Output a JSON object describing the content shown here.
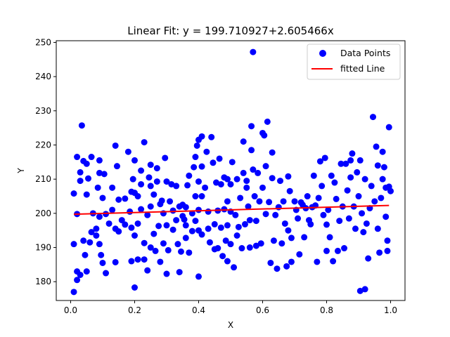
{
  "chart_data": {
    "type": "scatter",
    "title": "Linear Fit: y =  199.710927+2.605466x",
    "xlabel": "X",
    "ylabel": "Y",
    "xlim": [
      -0.045,
      1.045
    ],
    "ylim": [
      174.5,
      250.5
    ],
    "xticks": [
      0.0,
      0.2,
      0.4,
      0.6,
      0.8,
      1.0
    ],
    "xtick_labels": [
      "0.0",
      "0.2",
      "0.4",
      "0.6",
      "0.8",
      "1.0"
    ],
    "yticks": [
      180,
      190,
      200,
      210,
      220,
      230,
      240,
      250
    ],
    "ytick_labels": [
      "180",
      "190",
      "200",
      "210",
      "220",
      "230",
      "240",
      "250"
    ],
    "grid": false,
    "legend_position": "top-right",
    "series": [
      {
        "name": "Data Points",
        "kind": "scatter",
        "color": "#0000ff",
        "points": [
          [
            0.01,
            191
          ],
          [
            0.01,
            177
          ],
          [
            0.01,
            205.8
          ],
          [
            0.02,
            216.5
          ],
          [
            0.02,
            199.8
          ],
          [
            0.02,
            183
          ],
          [
            0.02,
            180.5
          ],
          [
            0.03,
            212
          ],
          [
            0.03,
            209.5
          ],
          [
            0.03,
            182
          ],
          [
            0.035,
            225.7
          ],
          [
            0.04,
            215.3
          ],
          [
            0.04,
            192
          ],
          [
            0.045,
            187.8
          ],
          [
            0.05,
            214.5
          ],
          [
            0.05,
            205.5
          ],
          [
            0.05,
            183
          ],
          [
            0.055,
            210.2
          ],
          [
            0.06,
            191.5
          ],
          [
            0.065,
            216.5
          ],
          [
            0.065,
            194.5
          ],
          [
            0.07,
            200
          ],
          [
            0.08,
            195.5
          ],
          [
            0.08,
            193.5
          ],
          [
            0.085,
            207.5
          ],
          [
            0.09,
            211.8
          ],
          [
            0.09,
            215.5
          ],
          [
            0.09,
            199
          ],
          [
            0.09,
            191
          ],
          [
            0.095,
            187.8
          ],
          [
            0.1,
            204.5
          ],
          [
            0.1,
            185.5
          ],
          [
            0.105,
            211.5
          ],
          [
            0.11,
            182.5
          ],
          [
            0.11,
            199.8
          ],
          [
            0.12,
            197
          ],
          [
            0.13,
            207.5
          ],
          [
            0.13,
            201
          ],
          [
            0.14,
            185.7
          ],
          [
            0.14,
            195.5
          ],
          [
            0.14,
            219.8
          ],
          [
            0.145,
            213.8
          ],
          [
            0.15,
            204
          ],
          [
            0.15,
            194.7
          ],
          [
            0.16,
            198
          ],
          [
            0.17,
            204.3
          ],
          [
            0.17,
            196.7
          ],
          [
            0.18,
            218
          ],
          [
            0.185,
            200.5
          ],
          [
            0.19,
            206.3
          ],
          [
            0.19,
            195.8
          ],
          [
            0.19,
            186
          ],
          [
            0.195,
            210
          ],
          [
            0.2,
            178.3
          ],
          [
            0.2,
            215.5
          ],
          [
            0.2,
            206
          ],
          [
            0.2,
            193.5
          ],
          [
            0.21,
            205
          ],
          [
            0.21,
            197
          ],
          [
            0.21,
            186.5
          ],
          [
            0.22,
            212.5
          ],
          [
            0.22,
            208.5
          ],
          [
            0.22,
            201.2
          ],
          [
            0.23,
            220.8
          ],
          [
            0.23,
            191.3
          ],
          [
            0.23,
            186.5
          ],
          [
            0.24,
            199.5
          ],
          [
            0.24,
            183.3
          ],
          [
            0.245,
            210.5
          ],
          [
            0.25,
            214.2
          ],
          [
            0.25,
            208
          ],
          [
            0.25,
            202
          ],
          [
            0.25,
            190
          ],
          [
            0.26,
            194
          ],
          [
            0.26,
            205.5
          ],
          [
            0.265,
            189
          ],
          [
            0.27,
            213.2
          ],
          [
            0.27,
            209.3
          ],
          [
            0.275,
            196.3
          ],
          [
            0.28,
            185.8
          ],
          [
            0.28,
            202.7
          ],
          [
            0.285,
            203.7
          ],
          [
            0.29,
            200
          ],
          [
            0.29,
            191.2
          ],
          [
            0.295,
            216.2
          ],
          [
            0.3,
            209.3
          ],
          [
            0.3,
            196.5
          ],
          [
            0.3,
            182.3
          ],
          [
            0.305,
            189.2
          ],
          [
            0.31,
            203.5
          ],
          [
            0.315,
            208.5
          ],
          [
            0.32,
            200.8
          ],
          [
            0.32,
            195.2
          ],
          [
            0.33,
            208
          ],
          [
            0.33,
            198
          ],
          [
            0.335,
            191
          ],
          [
            0.34,
            202
          ],
          [
            0.34,
            182.8
          ],
          [
            0.345,
            188.8
          ],
          [
            0.35,
            202.5
          ],
          [
            0.35,
            199.2
          ],
          [
            0.355,
            198.2
          ],
          [
            0.36,
            201.8
          ],
          [
            0.36,
            196.5
          ],
          [
            0.36,
            192.8
          ],
          [
            0.365,
            208.2
          ],
          [
            0.37,
            188.5
          ],
          [
            0.37,
            211
          ],
          [
            0.38,
            194.8
          ],
          [
            0.38,
            200
          ],
          [
            0.385,
            213.5
          ],
          [
            0.39,
            216.5
          ],
          [
            0.39,
            205
          ],
          [
            0.39,
            197.8
          ],
          [
            0.395,
            219.8
          ],
          [
            0.4,
            221.5
          ],
          [
            0.4,
            209.3
          ],
          [
            0.4,
            201
          ],
          [
            0.4,
            195
          ],
          [
            0.4,
            181.5
          ],
          [
            0.41,
            222.5
          ],
          [
            0.41,
            213.7
          ],
          [
            0.41,
            205
          ],
          [
            0.41,
            193.8
          ],
          [
            0.42,
            207.5
          ],
          [
            0.425,
            218
          ],
          [
            0.43,
            195.5
          ],
          [
            0.43,
            200.5
          ],
          [
            0.435,
            191.5
          ],
          [
            0.44,
            222.3
          ],
          [
            0.445,
            214.8
          ],
          [
            0.45,
            189.5
          ],
          [
            0.45,
            196.8
          ],
          [
            0.455,
            209
          ],
          [
            0.46,
            200.8
          ],
          [
            0.46,
            189.8
          ],
          [
            0.465,
            216
          ],
          [
            0.47,
            208.5
          ],
          [
            0.47,
            195.8
          ],
          [
            0.475,
            187.5
          ],
          [
            0.48,
            210.5
          ],
          [
            0.48,
            201.2
          ],
          [
            0.485,
            192
          ],
          [
            0.49,
            210
          ],
          [
            0.49,
            203.5
          ],
          [
            0.49,
            196.5
          ],
          [
            0.49,
            186
          ],
          [
            0.5,
            208.5
          ],
          [
            0.5,
            200.5
          ],
          [
            0.5,
            191
          ],
          [
            0.505,
            215
          ],
          [
            0.51,
            184.2
          ],
          [
            0.515,
            199.5
          ],
          [
            0.52,
            210
          ],
          [
            0.52,
            193.5
          ],
          [
            0.525,
            196
          ],
          [
            0.53,
            204.5
          ],
          [
            0.535,
            189.8
          ],
          [
            0.54,
            221
          ],
          [
            0.54,
            211.8
          ],
          [
            0.545,
            196.8
          ],
          [
            0.55,
            209.5
          ],
          [
            0.55,
            207.5
          ],
          [
            0.555,
            202
          ],
          [
            0.56,
            190
          ],
          [
            0.56,
            198
          ],
          [
            0.565,
            225.5
          ],
          [
            0.565,
            218.5
          ],
          [
            0.57,
            247.2
          ],
          [
            0.57,
            212.8
          ],
          [
            0.575,
            205
          ],
          [
            0.58,
            197.8
          ],
          [
            0.58,
            190.5
          ],
          [
            0.585,
            211.8
          ],
          [
            0.59,
            203.5
          ],
          [
            0.595,
            191.2
          ],
          [
            0.6,
            223.5
          ],
          [
            0.6,
            207.5
          ],
          [
            0.605,
            222.8
          ],
          [
            0.61,
            213.8
          ],
          [
            0.61,
            199.8
          ],
          [
            0.615,
            226.8
          ],
          [
            0.62,
            203.3
          ],
          [
            0.625,
            185.5
          ],
          [
            0.63,
            217.8
          ],
          [
            0.63,
            210.3
          ],
          [
            0.635,
            192
          ],
          [
            0.64,
            199.5
          ],
          [
            0.645,
            183.8
          ],
          [
            0.65,
            201.8
          ],
          [
            0.655,
            209.5
          ],
          [
            0.66,
            191.2
          ],
          [
            0.665,
            203.5
          ],
          [
            0.67,
            197
          ],
          [
            0.675,
            184.5
          ],
          [
            0.68,
            210.8
          ],
          [
            0.68,
            195
          ],
          [
            0.685,
            206.5
          ],
          [
            0.69,
            192.8
          ],
          [
            0.69,
            185.8
          ],
          [
            0.7,
            203.5
          ],
          [
            0.705,
            201
          ],
          [
            0.71,
            198.5
          ],
          [
            0.715,
            188
          ],
          [
            0.72,
            203.2
          ],
          [
            0.725,
            202.5
          ],
          [
            0.73,
            193
          ],
          [
            0.735,
            201.5
          ],
          [
            0.74,
            205
          ],
          [
            0.745,
            198
          ],
          [
            0.75,
            196.8
          ],
          [
            0.755,
            201.8
          ],
          [
            0.76,
            211
          ],
          [
            0.765,
            202.3
          ],
          [
            0.77,
            185.8
          ],
          [
            0.775,
            204.5
          ],
          [
            0.78,
            215.2
          ],
          [
            0.785,
            208
          ],
          [
            0.79,
            199.5
          ],
          [
            0.795,
            216.2
          ],
          [
            0.8,
            189
          ],
          [
            0.8,
            196.7
          ],
          [
            0.805,
            201
          ],
          [
            0.81,
            193
          ],
          [
            0.815,
            211
          ],
          [
            0.82,
            186
          ],
          [
            0.825,
            209
          ],
          [
            0.83,
            204.2
          ],
          [
            0.835,
            189
          ],
          [
            0.84,
            197.8
          ],
          [
            0.845,
            214.5
          ],
          [
            0.85,
            202
          ],
          [
            0.855,
            189.8
          ],
          [
            0.86,
            214.5
          ],
          [
            0.865,
            206.7
          ],
          [
            0.87,
            198.5
          ],
          [
            0.875,
            215.5
          ],
          [
            0.875,
            210.5
          ],
          [
            0.88,
            217.5
          ],
          [
            0.885,
            202
          ],
          [
            0.89,
            195.5
          ],
          [
            0.895,
            212
          ],
          [
            0.9,
            205
          ],
          [
            0.905,
            215.5
          ],
          [
            0.905,
            177.3
          ],
          [
            0.91,
            200
          ],
          [
            0.915,
            194.5
          ],
          [
            0.92,
            177.8
          ],
          [
            0.92,
            210
          ],
          [
            0.925,
            197
          ],
          [
            0.93,
            186.8
          ],
          [
            0.935,
            201.5
          ],
          [
            0.94,
            208
          ],
          [
            0.945,
            228.2
          ],
          [
            0.95,
            203.5
          ],
          [
            0.955,
            219.5
          ],
          [
            0.96,
            214
          ],
          [
            0.96,
            195.5
          ],
          [
            0.965,
            188.5
          ],
          [
            0.97,
            204.5
          ],
          [
            0.975,
            218
          ],
          [
            0.975,
            210
          ],
          [
            0.98,
            213.5
          ],
          [
            0.985,
            207.5
          ],
          [
            0.985,
            199
          ],
          [
            0.99,
            189
          ],
          [
            0.99,
            192
          ],
          [
            0.995,
            225.2
          ],
          [
            0.995,
            207.8
          ],
          [
            1.0,
            206.5
          ]
        ]
      },
      {
        "name": "fitted Line",
        "kind": "line",
        "color": "#ff0000",
        "points": [
          [
            0.01,
            199.74
          ],
          [
            0.995,
            202.3
          ]
        ]
      }
    ]
  }
}
